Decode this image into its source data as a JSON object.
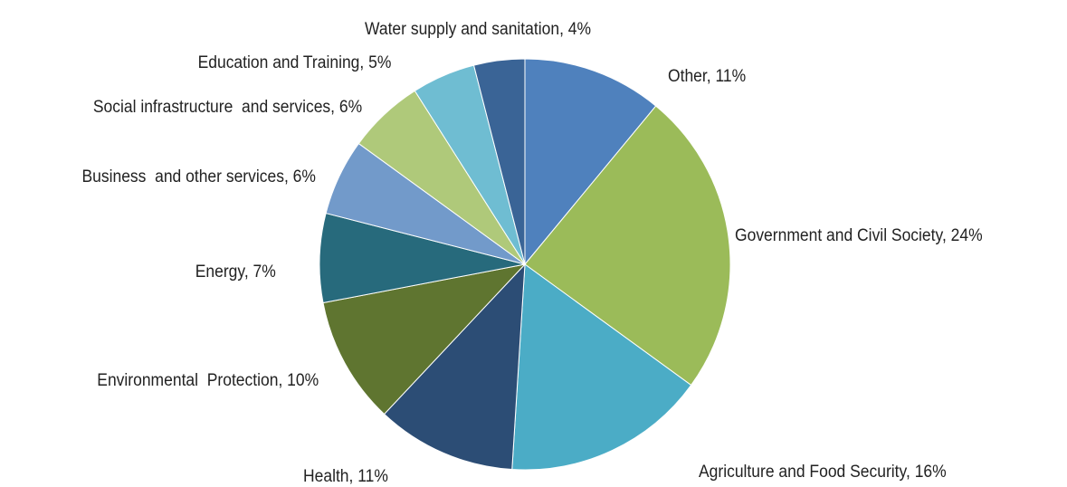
{
  "chart_data": {
    "type": "pie",
    "categories": [
      "Other",
      "Government and Civil Society",
      "Agriculture and Food Security",
      "Health",
      "Environmental  Protection",
      "Energy",
      "Business  and other services",
      "Social infrastructure  and services",
      "Education and Training",
      "Water supply and sanitation"
    ],
    "values": [
      11,
      24,
      16,
      11,
      10,
      7,
      6,
      6,
      5,
      4
    ],
    "value_labels": [
      "11%",
      "24%",
      "16%",
      "11%",
      "10%",
      "7%",
      "6%",
      "6%",
      "5%",
      "4%"
    ],
    "colors": [
      "#4f81bd",
      "#9bbb59",
      "#4bacc6",
      "#2c4d75",
      "#5f7530",
      "#276a7c",
      "#729aca",
      "#afc97a",
      "#6fbdd2",
      "#3a6496"
    ]
  }
}
